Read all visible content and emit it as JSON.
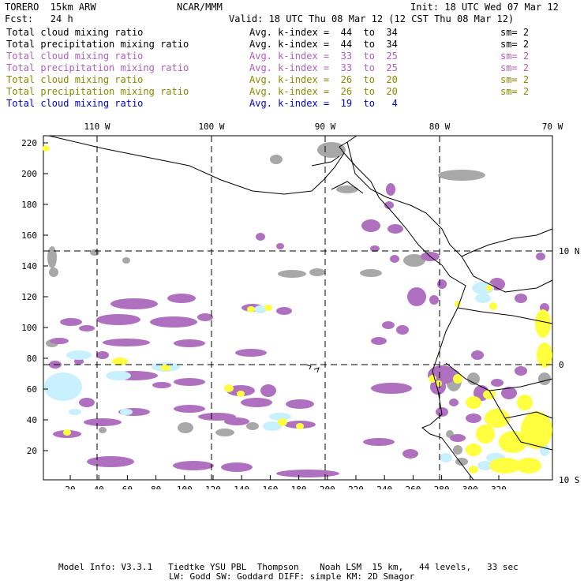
{
  "header": {
    "model": "TORERO  15km ARW",
    "org": "NCAR/MMM",
    "init": "Init: 18 UTC Wed 07 Mar 12",
    "fcst": "Fcst:   24 h",
    "valid": "Valid: 18 UTC Thu 08 Mar 12 (12 CST Thu 08 Mar 12)"
  },
  "legend": [
    {
      "field": "Total cloud mixing ratio",
      "kindex": "Avg. k-index =  44  to  34",
      "sm": "sm= 2",
      "color": "#000000"
    },
    {
      "field": "Total precipitation mixing ratio",
      "kindex": "Avg. k-index =  44  to  34",
      "sm": "sm= 2",
      "color": "#000000"
    },
    {
      "field": "Total cloud mixing ratio",
      "kindex": "Avg. k-index =  33  to  25",
      "sm": "sm= 2",
      "color": "#b060c0"
    },
    {
      "field": "Total precipitation mixing ratio",
      "kindex": "Avg. k-index =  33  to  25",
      "sm": "sm= 2",
      "color": "#b060c0"
    },
    {
      "field": "Total cloud mixing ratio",
      "kindex": "Avg. k-index =  26  to  20",
      "sm": "sm= 2",
      "color": "#8a8a00"
    },
    {
      "field": "Total precipitation mixing ratio",
      "kindex": "Avg. k-index =  26  to  20",
      "sm": "sm= 2",
      "color": "#8a8a00"
    },
    {
      "field": "Total cloud mixing ratio",
      "kindex": "Avg. k-index =  19  to   4",
      "sm": "",
      "color": "#0000cc"
    }
  ],
  "map": {
    "lon_labels": [
      "110 W",
      "100 W",
      "90 W",
      "80 W",
      "70 W"
    ],
    "lat_labels": [
      "10 N",
      "0",
      "10 S"
    ],
    "x_ticks": [
      "20",
      "40",
      "60",
      "80",
      "100",
      "120",
      "140",
      "160",
      "180",
      "200",
      "220",
      "240",
      "260",
      "280",
      "300",
      "320"
    ],
    "y_ticks": [
      "220",
      "200",
      "180",
      "160",
      "140",
      "120",
      "100",
      "80",
      "60",
      "40",
      "20"
    ],
    "fill_colors": {
      "gray": "#a8a8a8",
      "purple": "#b070c0",
      "yellow": "#ffff40",
      "lightblue": "#c8f0ff"
    }
  },
  "footer": {
    "line1": "Model Info: V3.3.1   Tiedtke YSU PBL  Thompson    Noah LSM  15 km,   44 levels,   33 sec",
    "line2": "LW: Godd SW: Goddard DIFF: simple KM: 2D Smagor"
  }
}
